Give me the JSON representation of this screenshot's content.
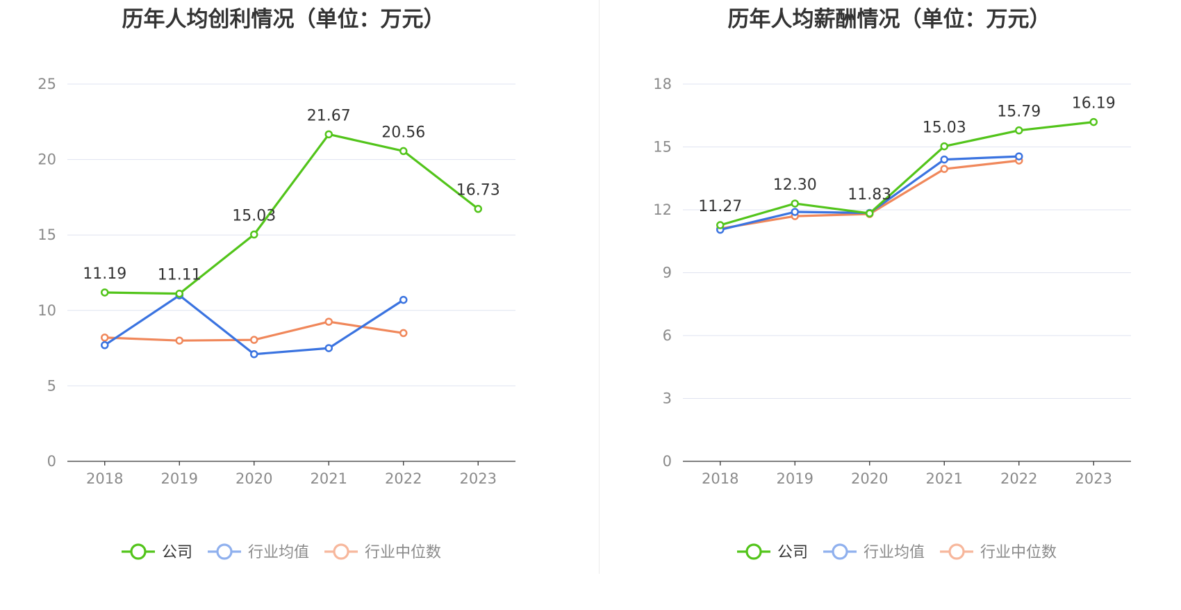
{
  "colors": {
    "company": "#52c41a",
    "avg": "#3a73e0",
    "median": "#f0875a",
    "avg_legend": "#8fb0ee",
    "median_legend": "#f7b79c",
    "grid": "#dfe3f0",
    "axis": "#333333"
  },
  "legend": {
    "company": "公司",
    "avg": "行业均值",
    "median": "行业中位数"
  },
  "chart_data": [
    {
      "type": "line",
      "title": "历年人均创利情况（单位：万元）",
      "xlabel": "",
      "ylabel": "",
      "categories": [
        "2018",
        "2019",
        "2020",
        "2021",
        "2022",
        "2023"
      ],
      "ylim": [
        0,
        25
      ],
      "yticks": [
        0,
        5,
        10,
        15,
        20,
        25
      ],
      "grid": true,
      "legend_position": "bottom",
      "series": [
        {
          "name": "公司",
          "key": "company",
          "values": [
            11.19,
            11.11,
            15.03,
            21.67,
            20.56,
            16.73
          ],
          "labels": [
            "11.19",
            "11.11",
            "15.03",
            "21.67",
            "20.56",
            "16.73"
          ]
        },
        {
          "name": "行业均值",
          "key": "avg",
          "values": [
            7.7,
            11.0,
            7.1,
            7.5,
            10.7,
            null
          ]
        },
        {
          "name": "行业中位数",
          "key": "median",
          "values": [
            8.2,
            8.0,
            8.05,
            9.25,
            8.5,
            null
          ]
        }
      ]
    },
    {
      "type": "line",
      "title": "历年人均薪酬情况（单位：万元）",
      "xlabel": "",
      "ylabel": "",
      "categories": [
        "2018",
        "2019",
        "2020",
        "2021",
        "2022",
        "2023"
      ],
      "ylim": [
        0,
        18
      ],
      "yticks": [
        0,
        3,
        6,
        9,
        12,
        15,
        18
      ],
      "grid": true,
      "legend_position": "bottom",
      "series": [
        {
          "name": "公司",
          "key": "company",
          "values": [
            11.27,
            12.3,
            11.83,
            15.03,
            15.79,
            16.19
          ],
          "labels": [
            "11.27",
            "12.30",
            "11.83",
            "15.03",
            "15.79",
            "16.19"
          ]
        },
        {
          "name": "行业均值",
          "key": "avg",
          "values": [
            11.05,
            11.9,
            11.85,
            14.4,
            14.55,
            null
          ]
        },
        {
          "name": "行业中位数",
          "key": "median",
          "values": [
            11.1,
            11.7,
            11.8,
            13.95,
            14.35,
            null
          ]
        }
      ]
    }
  ]
}
